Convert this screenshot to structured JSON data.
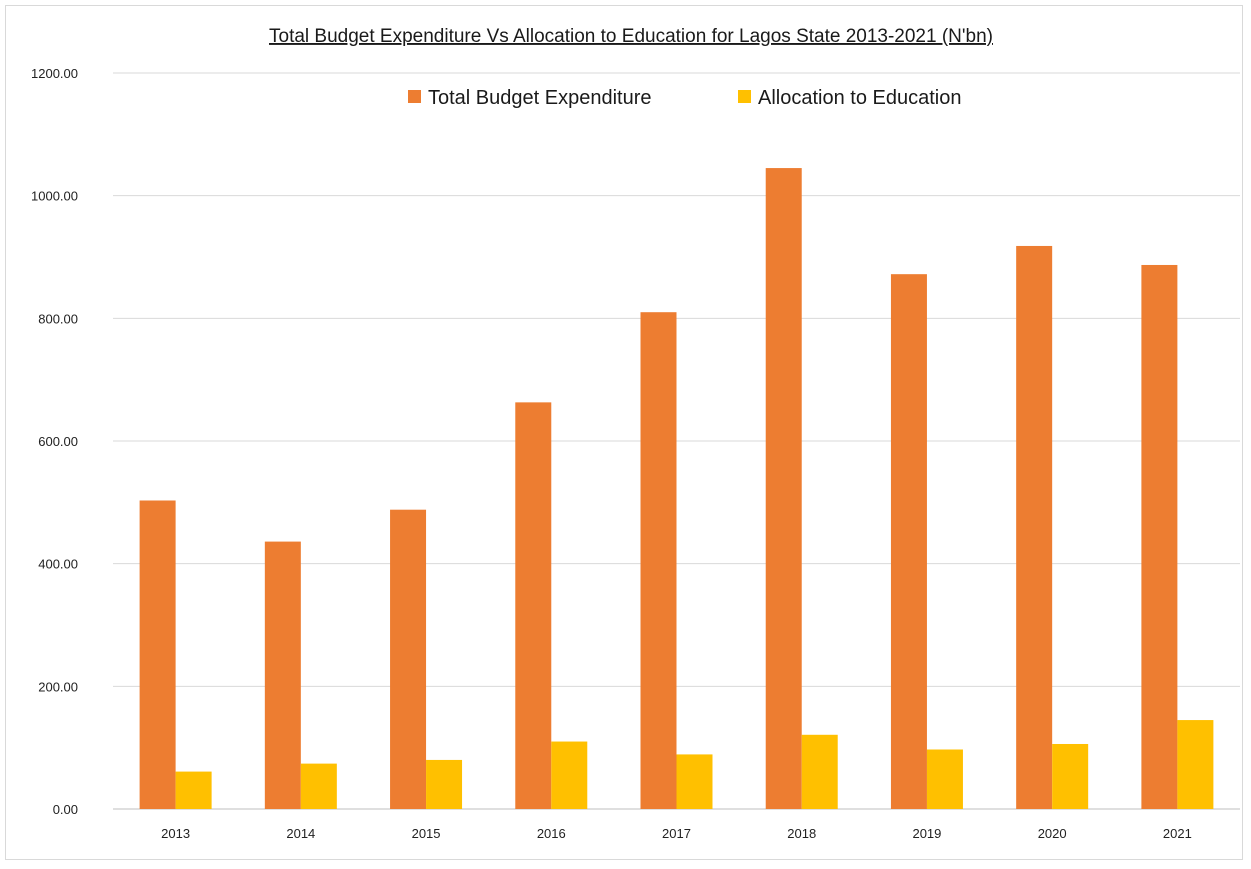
{
  "chart_data": {
    "type": "bar",
    "title": "Total Budget Expenditure  Vs Allocation to Education for Lagos State 2013-2021 (N'bn)",
    "categories": [
      "2013",
      "2014",
      "2015",
      "2016",
      "2017",
      "2018",
      "2019",
      "2020",
      "2021"
    ],
    "series": [
      {
        "name": "Total Budget Expenditure",
        "color": "#ED7D31",
        "values": [
          503,
          436,
          488,
          663,
          810,
          1045,
          872,
          918,
          887
        ]
      },
      {
        "name": "Allocation to Education",
        "color": "#FFC000",
        "values": [
          61,
          74,
          80,
          110,
          89,
          121,
          97,
          106,
          145
        ]
      }
    ],
    "ylim": [
      0,
      1200
    ],
    "yticks": [
      "0.00",
      "200.00",
      "400.00",
      "600.00",
      "800.00",
      "1000.00",
      "1200.00"
    ],
    "grid": true,
    "legend": "top-center",
    "xlabel": "",
    "ylabel": ""
  }
}
